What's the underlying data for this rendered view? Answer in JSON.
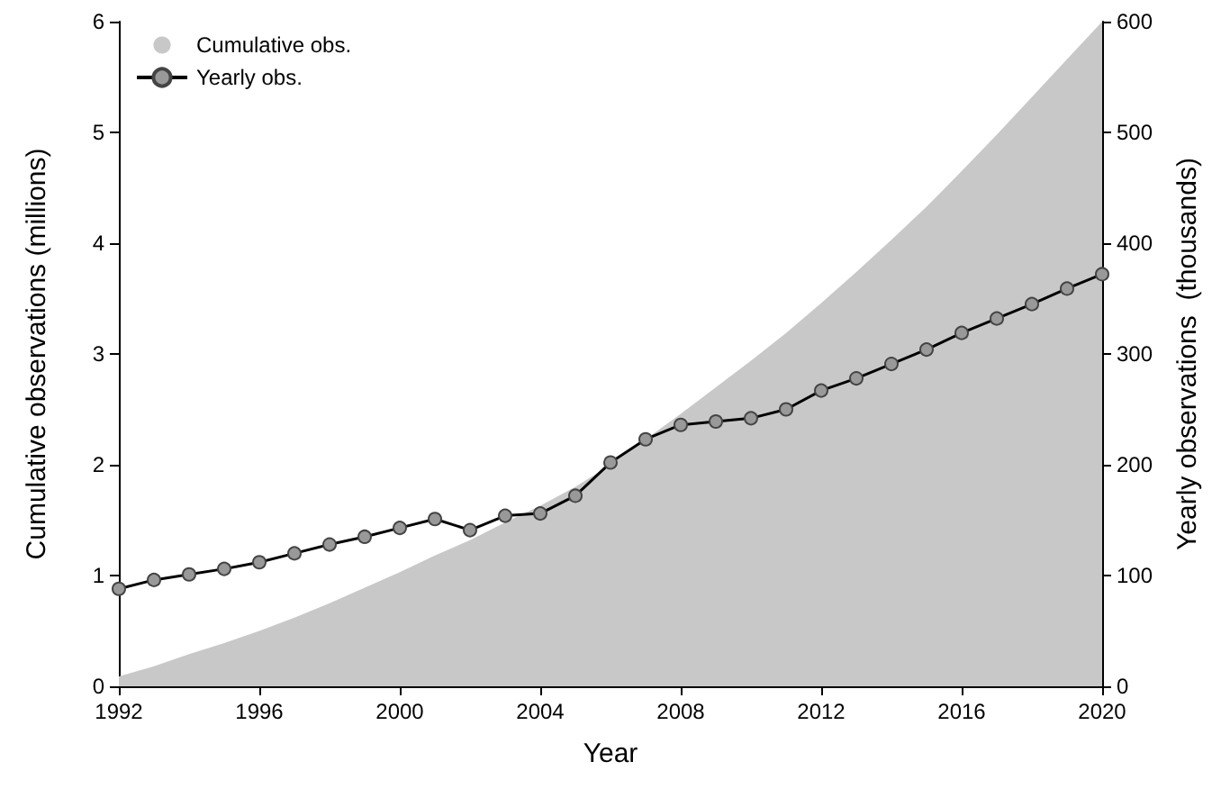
{
  "chart_data": {
    "type": "area",
    "xlabel": "Year",
    "ylabel": "Cumulative observations (millions)",
    "y2label": "Yearly observations  (thousands)",
    "x": [
      1992,
      1993,
      1994,
      1995,
      1996,
      1997,
      1998,
      1999,
      2000,
      2001,
      2002,
      2003,
      2004,
      2005,
      2006,
      2007,
      2008,
      2009,
      2010,
      2011,
      2012,
      2013,
      2014,
      2015,
      2016,
      2017,
      2018,
      2019,
      2020
    ],
    "series": [
      {
        "name": "Cumulative obs.",
        "color": "#c8c8c8",
        "values": [
          0.09,
          0.18,
          0.29,
          0.39,
          0.5,
          0.62,
          0.75,
          0.89,
          1.03,
          1.18,
          1.32,
          1.48,
          1.63,
          1.8,
          2.0,
          2.23,
          2.46,
          2.7,
          2.94,
          3.19,
          3.46,
          3.74,
          4.03,
          4.33,
          4.65,
          4.98,
          5.32,
          5.66,
          6.0
        ]
      },
      {
        "name": "Yearly obs.",
        "type": "line",
        "axis": "y2",
        "color": "#000000",
        "marker": "circle",
        "values": [
          88,
          96,
          101,
          106,
          112,
          120,
          128,
          135,
          143,
          151,
          141,
          154,
          156,
          172,
          202,
          223,
          236,
          239,
          242,
          250,
          267,
          278,
          291,
          304,
          319,
          332,
          345,
          359,
          372
        ]
      }
    ],
    "xlim": [
      1992,
      2020
    ],
    "xticks": [
      1992,
      1996,
      2000,
      2004,
      2008,
      2012,
      2016,
      2020
    ],
    "ylim": [
      0,
      6
    ],
    "yticks": [
      0,
      1,
      2,
      3,
      4,
      5,
      6
    ],
    "y2lim": [
      0,
      600
    ],
    "y2ticks": [
      0,
      100,
      200,
      300,
      400,
      500,
      600
    ],
    "grid": false,
    "legend": "top left"
  }
}
